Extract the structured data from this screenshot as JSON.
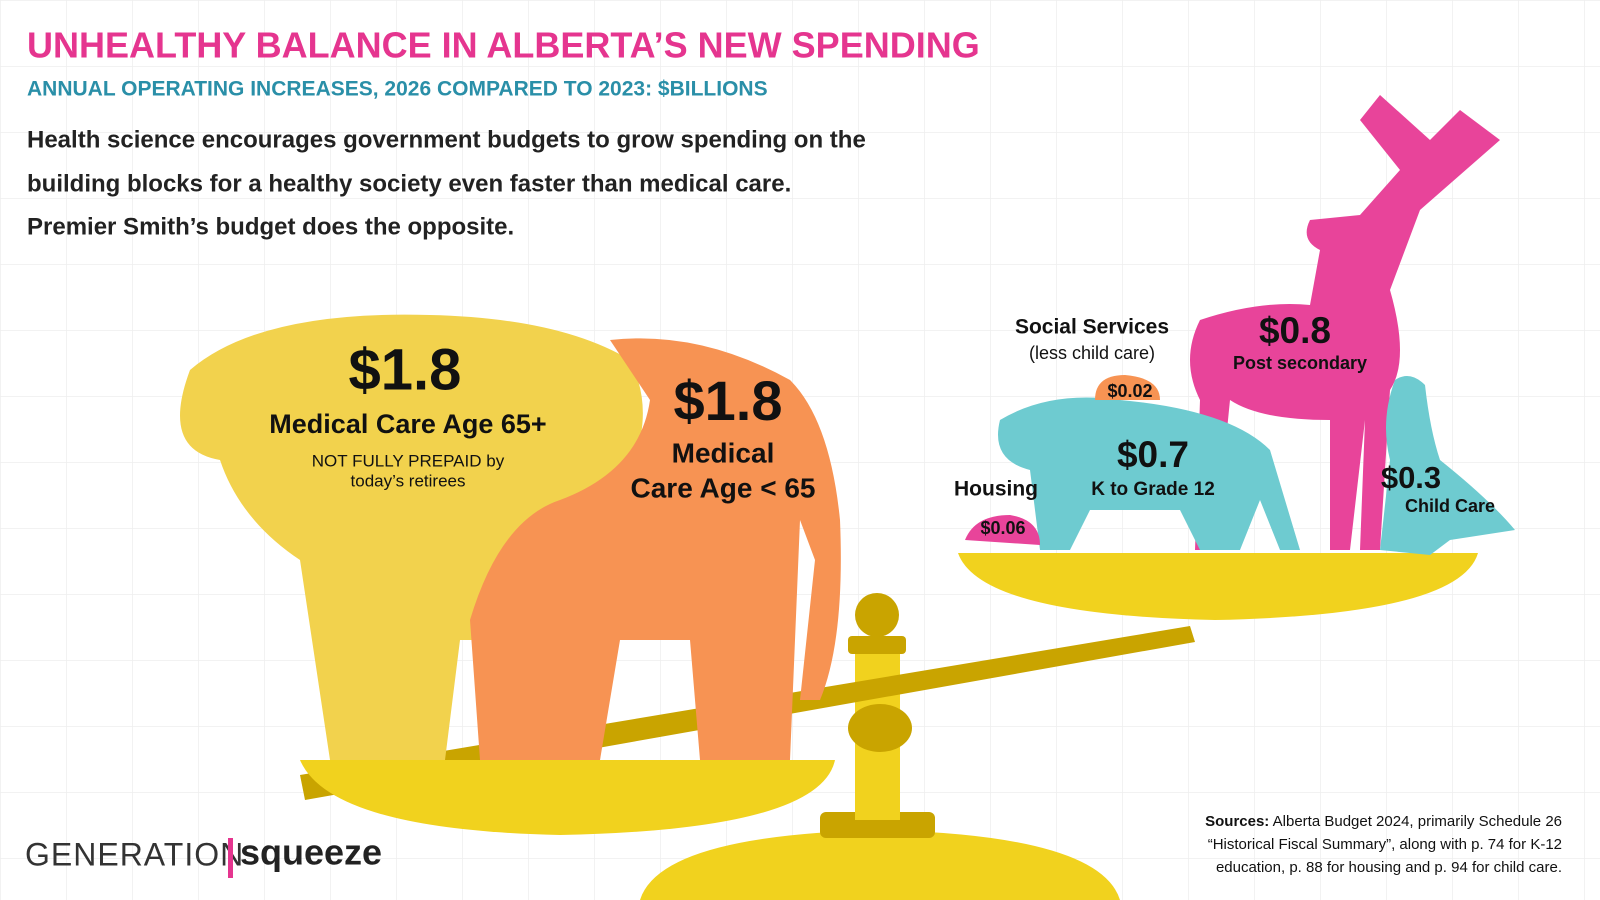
{
  "header": {
    "title": "UNHEALTHY BALANCE IN ALBERTA’S NEW SPENDING",
    "subtitle": "ANNUAL OPERATING INCREASES, 2026 COMPARED TO 2023: $BILLIONS",
    "intro": [
      "Health science encourages government budgets to grow spending on the",
      "building blocks for a healthy society even faster than medical care.",
      "Premier Smith’s budget does the opposite."
    ]
  },
  "left_pan": [
    {
      "amount": "$1.8",
      "label": [
        "Medical Care Age 65+"
      ],
      "note": [
        "NOT FULLY PREPAID by",
        "today’s retirees"
      ]
    },
    {
      "amount": "$1.8",
      "label": [
        "Medical",
        "Care Age < 65"
      ]
    }
  ],
  "right_pan": {
    "housing": {
      "label": "Housing",
      "amount": "$0.06"
    },
    "k12": {
      "amount": "$0.7",
      "label": "K to Grade 12"
    },
    "social_services": {
      "label": "Social Services",
      "note": "(less child care)",
      "amount": "$0.02"
    },
    "post_secondary": {
      "amount": "$0.8",
      "label": "Post secondary"
    },
    "child_care": {
      "amount": "$0.3",
      "label": "Child Care"
    }
  },
  "logo": {
    "left": "GENERATION",
    "right": "squeeze"
  },
  "sources": {
    "heading": "Sources:",
    "lines": [
      "Alberta Budget 2024, primarily Schedule 26",
      "“Historical Fiscal Summary”, along with p. 74 for K-12",
      "education, p. 88 for housing and p. 94 for child care."
    ]
  }
}
